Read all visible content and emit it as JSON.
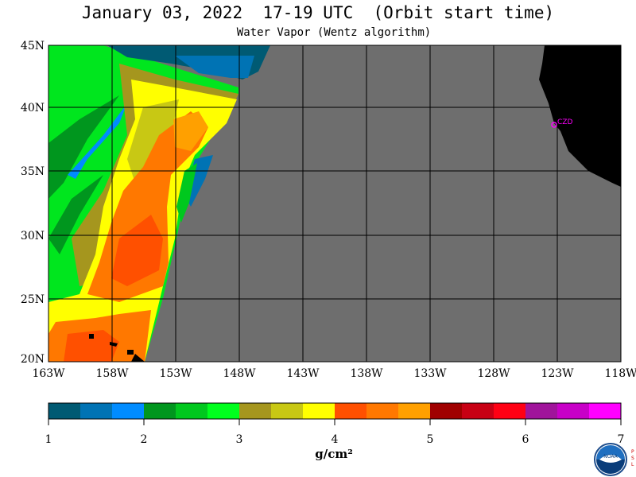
{
  "header": {
    "title": "January 03, 2022  17-19 UTC  (Orbit start time)",
    "subtitle": "Water Vapor (Wentz algorithm)"
  },
  "map": {
    "lat_labels": [
      "45N",
      "40N",
      "35N",
      "30N",
      "25N",
      "20N"
    ],
    "lon_labels": [
      "163W",
      "158W",
      "153W",
      "148W",
      "143W",
      "138W",
      "133W",
      "128W",
      "123W",
      "118W"
    ],
    "station_label": "CZD",
    "colors": {
      "no_data": "#6e6e6e",
      "land": "#000000",
      "grid": "#000000",
      "station": "#ff00ff"
    }
  },
  "colorbar": {
    "units": "g/cm²",
    "tick_labels": [
      "1",
      "2",
      "3",
      "4",
      "5",
      "6",
      "7"
    ],
    "colors": [
      "#005a73",
      "#0073b4",
      "#008cff",
      "#00961e",
      "#00c81e",
      "#00ff1e",
      "#a5961e",
      "#c8c814",
      "#ffff00",
      "#ff5000",
      "#ff7800",
      "#ffa000",
      "#a00000",
      "#c80014",
      "#ff0014",
      "#a0149b",
      "#c800c8",
      "#ff00ff"
    ]
  },
  "chart_data": {
    "type": "heatmap",
    "title": "January 03, 2022  17-19 UTC  (Orbit start time)",
    "subtitle": "Water Vapor (Wentz algorithm)",
    "xlabel": "",
    "ylabel": "",
    "lon_range_deg": [
      -163,
      -118
    ],
    "lat_range_deg": [
      20,
      45
    ],
    "colorbar_range": [
      1,
      7
    ],
    "colorbar_units": "g/cm²"
  },
  "logo": {
    "text": "NOAA",
    "side_text": "PSL"
  }
}
